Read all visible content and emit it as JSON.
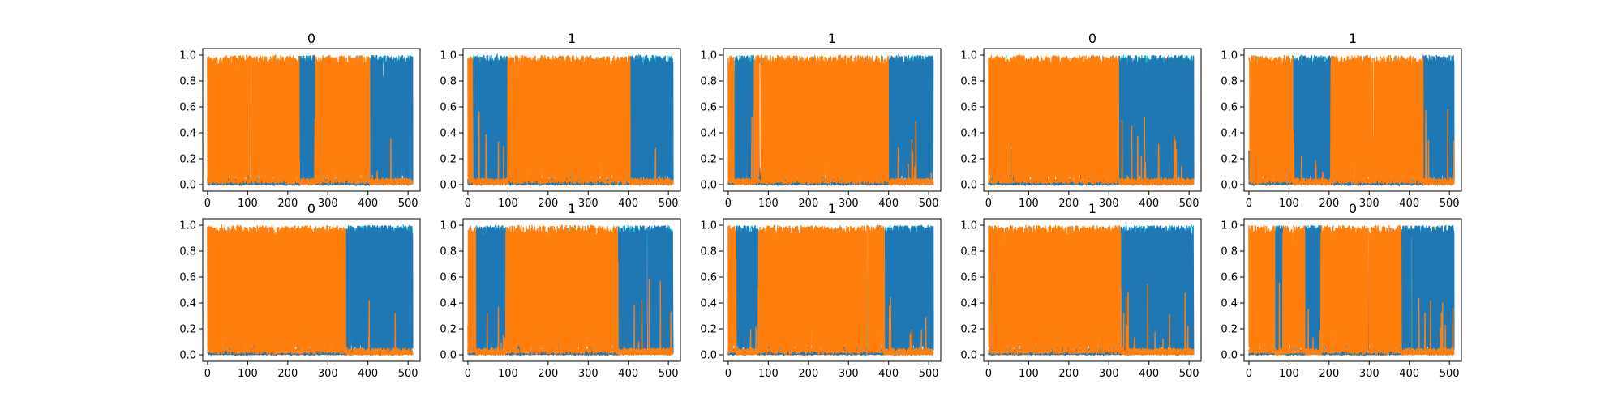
{
  "chart_data": {
    "type": "line",
    "grid": false,
    "layout": "2 rows x 5 columns of line subplots",
    "colors": [
      "#1f77b4",
      "#ff7f0e",
      "#17becf",
      "#bcbd22",
      "#2ca02c",
      "#9467bd",
      "#e377c2",
      "#8c564b",
      "#7f7f7f",
      "#d62728"
    ],
    "dominant_series_colors": [
      "#1f77b4",
      "#ff7f0e"
    ],
    "xlim": [
      -12,
      530
    ],
    "ylim": [
      -0.05,
      1.05
    ],
    "x_ticks": [
      0,
      100,
      200,
      300,
      400,
      500
    ],
    "y_ticks": [
      0.0,
      0.2,
      0.4,
      0.6,
      0.8,
      1.0
    ],
    "x_tick_labels": [
      "0",
      "100",
      "200",
      "300",
      "400",
      "500"
    ],
    "y_tick_labels": [
      "0.0",
      "0.2",
      "0.4",
      "0.6",
      "0.8",
      "1.0"
    ],
    "x_range": [
      0,
      511
    ],
    "subplots": [
      {
        "title": "0",
        "orange_segments": [
          [
            0,
            230
          ],
          [
            270,
            405
          ]
        ]
      },
      {
        "title": "1",
        "orange_segments": [
          [
            0,
            12
          ],
          [
            100,
            405
          ]
        ]
      },
      {
        "title": "1",
        "orange_segments": [
          [
            0,
            15
          ],
          [
            65,
            400
          ]
        ]
      },
      {
        "title": "0",
        "orange_segments": [
          [
            0,
            325
          ]
        ]
      },
      {
        "title": "1",
        "orange_segments": [
          [
            0,
            110
          ],
          [
            205,
            435
          ]
        ]
      },
      {
        "title": "0",
        "orange_segments": [
          [
            0,
            345
          ]
        ]
      },
      {
        "title": "1",
        "orange_segments": [
          [
            0,
            20
          ],
          [
            95,
            375
          ]
        ]
      },
      {
        "title": "1",
        "orange_segments": [
          [
            0,
            20
          ],
          [
            75,
            390
          ]
        ]
      },
      {
        "title": "1",
        "orange_segments": [
          [
            0,
            330
          ]
        ]
      },
      {
        "title": "0",
        "orange_segments": [
          [
            0,
            65
          ],
          [
            85,
            140
          ],
          [
            180,
            380
          ]
        ]
      }
    ]
  }
}
